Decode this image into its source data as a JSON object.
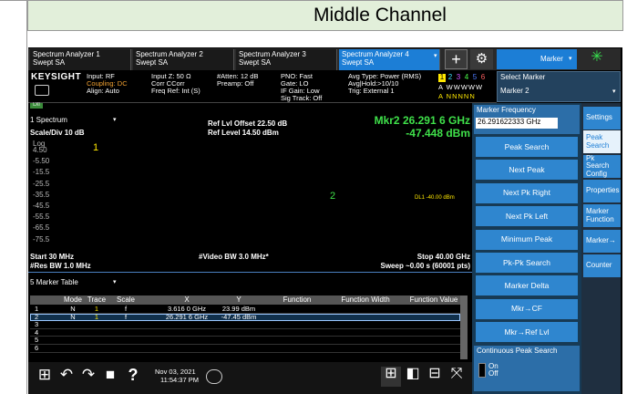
{
  "header": {
    "title": "Middle Channel"
  },
  "tabs": [
    {
      "name": "Spectrum Analyzer 1",
      "mode": "Swept SA"
    },
    {
      "name": "Spectrum Analyzer 2",
      "mode": "Swept SA"
    },
    {
      "name": "Spectrum Analyzer 3",
      "mode": "Swept SA"
    },
    {
      "name": "Spectrum Analyzer 4",
      "mode": "Swept SA"
    }
  ],
  "toolbar": {
    "add": "+",
    "menu": "Marker"
  },
  "status": {
    "brand": "KEYSIGHT",
    "lxi": "LXI",
    "groups": [
      [
        "Input: RF",
        "Coupling: DC",
        "Align: Auto"
      ],
      [
        "Input Z: 50 Ω",
        "Corr CCorr",
        "Freq Ref: Int (S)"
      ],
      [
        "#Atten: 12 dB",
        "Preamp: Off"
      ],
      [
        "PNO: Fast",
        "Gate: LO",
        "IF Gain: Low",
        "Sig Track: Off"
      ],
      [
        "Avg Type: Power (RMS)",
        "Avg|Hold:>10/10",
        "Trig: External 1"
      ]
    ],
    "trace_numbers": [
      "1",
      "2",
      "3",
      "4",
      "5",
      "6"
    ],
    "trace_types": "A WWWWW",
    "detectors": "A NNNNN"
  },
  "select_marker": {
    "label": "Select Marker",
    "value": "Marker 2"
  },
  "graph": {
    "window": "1 Spectrum",
    "scale": "Scale/Div 10 dB",
    "ref_offset": "Ref Lvl Offset 22.50 dB",
    "ref_level": "Ref Level 14.50 dBm",
    "marker_freq": "Mkr2 26.291 6 GHz",
    "marker_amp": "-47.448 dBm",
    "y_scale": "Log",
    "y_labels": [
      "4.50",
      "-5.50",
      "-15.5",
      "-25.5",
      "-35.5",
      "-45.5",
      "-55.5",
      "-65.5",
      "-75.5"
    ],
    "display_line": "DL1 -40.00 dBm",
    "markers": [
      "1",
      "2"
    ],
    "start": "Start 30 MHz",
    "res_bw": "#Res BW 1.0 MHz",
    "video_bw": "#Video BW 3.0 MHz*",
    "stop": "Stop 40.00 GHz",
    "sweep": "Sweep ~0.00 s (60001 pts)"
  },
  "table": {
    "title": "5 Marker Table",
    "columns": [
      "Mode",
      "Trace",
      "Scale",
      "X",
      "Y",
      "Function",
      "Function Width",
      "Function Value"
    ],
    "rows": [
      {
        "id": "1",
        "cells": [
          "N",
          "1",
          "f",
          "3.616 0 GHz",
          "23.99 dBm"
        ]
      },
      {
        "id": "2",
        "cells": [
          "N",
          "1",
          "f",
          "26.291 6 GHz",
          "-47.45 dBm"
        ]
      },
      {
        "id": "3"
      },
      {
        "id": "4"
      },
      {
        "id": "5"
      },
      {
        "id": "6"
      }
    ]
  },
  "softkeys": {
    "marker_frequency": {
      "label": "Marker Frequency",
      "value": "26.291622333 GHz"
    },
    "buttons": [
      "Peak Search",
      "Next Peak",
      "Next Pk Right",
      "Next Pk Left",
      "Minimum Peak",
      "Pk-Pk Search",
      "Marker Delta",
      "Mkr→CF",
      "Mkr→Ref Lvl"
    ],
    "continuous": {
      "label": "Continuous Peak Search",
      "on": "On",
      "off": "Off"
    }
  },
  "side_tabs": [
    "Settings",
    "Peak Search",
    "Pk Search Config",
    "Properties",
    "Marker Function",
    "Marker→",
    "Counter"
  ],
  "taskbar": {
    "help": "?",
    "date": "Nov 03, 2021",
    "time": "11:54:37 PM"
  }
}
